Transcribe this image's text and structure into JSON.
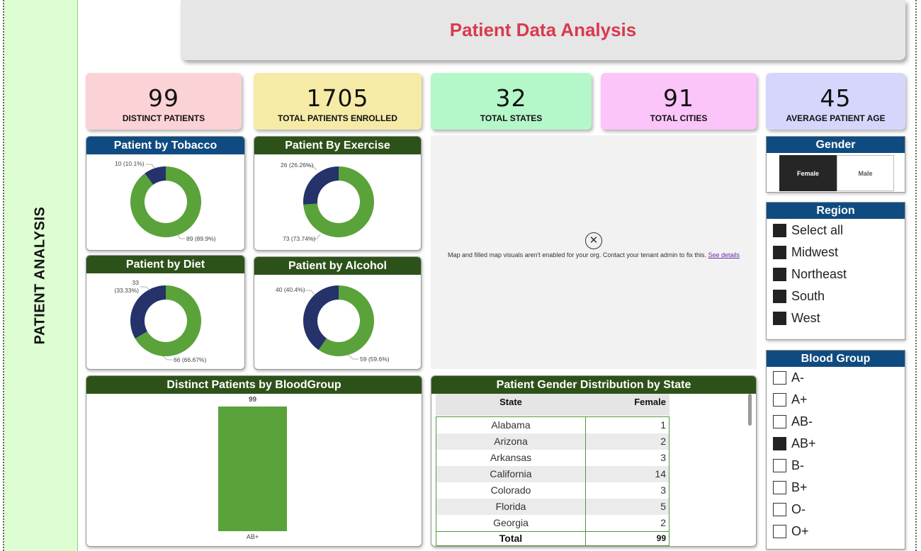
{
  "sidebar": {
    "title": "PATIENT ANALYSIS"
  },
  "header": {
    "title": "Patient Data Analysis",
    "title_color": "#d9394e"
  },
  "kpis": [
    {
      "value": "99",
      "label": "DISTINCT PATIENTS",
      "color": "#fbd2d6"
    },
    {
      "value": "1705",
      "label": "TOTAL PATIENTS ENROLLED",
      "color": "#f5eba7"
    },
    {
      "value": "32",
      "label": "TOTAL STATES",
      "color": "#b4f7c9"
    },
    {
      "value": "91",
      "label": "TOTAL CITIES",
      "color": "#fbc5f9"
    },
    {
      "value": "45",
      "label": "AVERAGE PATIENT AGE",
      "color": "#d6d6fd"
    }
  ],
  "chart_data": [
    {
      "type": "pie",
      "variant": "donut",
      "title": "Patient by Tobacco",
      "slices": [
        {
          "value": 89,
          "label": "89 (89.9%)",
          "color": "#5aa23a"
        },
        {
          "value": 10,
          "label": "10 (10.1%)",
          "color": "#26326a"
        }
      ]
    },
    {
      "type": "pie",
      "variant": "donut",
      "title": "Patient By Exercise",
      "slices": [
        {
          "value": 73,
          "label": "73 (73.74%)",
          "color": "#5aa23a"
        },
        {
          "value": 26,
          "label": "26 (26.26%)",
          "color": "#26326a"
        }
      ]
    },
    {
      "type": "pie",
      "variant": "donut",
      "title": "Patient by Diet",
      "slices": [
        {
          "value": 66,
          "label": "66 (66.67%)",
          "color": "#5aa23a"
        },
        {
          "value": 33,
          "label": "33",
          "label2": "(33.33%)",
          "color": "#26326a"
        }
      ]
    },
    {
      "type": "pie",
      "variant": "donut",
      "title": "Patient by Alcohol",
      "slices": [
        {
          "value": 59,
          "label": "59 (59.6%)",
          "color": "#5aa23a"
        },
        {
          "value": 40,
          "label": "40 (40.4%)",
          "color": "#26326a"
        }
      ]
    },
    {
      "type": "bar",
      "title": "Distinct Patients by BloodGroup",
      "categories": [
        "AB+"
      ],
      "values": [
        99
      ],
      "data_labels": [
        "99"
      ],
      "ylim": [
        0,
        99
      ],
      "color": "#5aa23a"
    }
  ],
  "map": {
    "message": "Map and filled map visuals aren't enabled for your org. Contact your tenant admin to fix this.",
    "link_text": "See details"
  },
  "state_table": {
    "title": "Patient Gender Distribution by State",
    "columns": [
      "State",
      "Female"
    ],
    "rows": [
      {
        "state": "Alabama",
        "female": "1"
      },
      {
        "state": "Arizona",
        "female": "2"
      },
      {
        "state": "Arkansas",
        "female": "3"
      },
      {
        "state": "California",
        "female": "14"
      },
      {
        "state": "Colorado",
        "female": "3"
      },
      {
        "state": "Florida",
        "female": "5"
      },
      {
        "state": "Georgia",
        "female": "2"
      }
    ],
    "total_label": "Total",
    "total_value": "99"
  },
  "gender_slicer": {
    "title": "Gender",
    "options": [
      "Female",
      "Male"
    ],
    "selected": "Female"
  },
  "region_slicer": {
    "title": "Region",
    "items": [
      "Select all",
      "Midwest",
      "Northeast",
      "South",
      "West"
    ]
  },
  "blood_slicer": {
    "title": "Blood Group",
    "items": [
      "A-",
      "A+",
      "AB-",
      "AB+",
      "B-",
      "B+",
      "O-",
      "O+"
    ],
    "selected": "AB+"
  }
}
